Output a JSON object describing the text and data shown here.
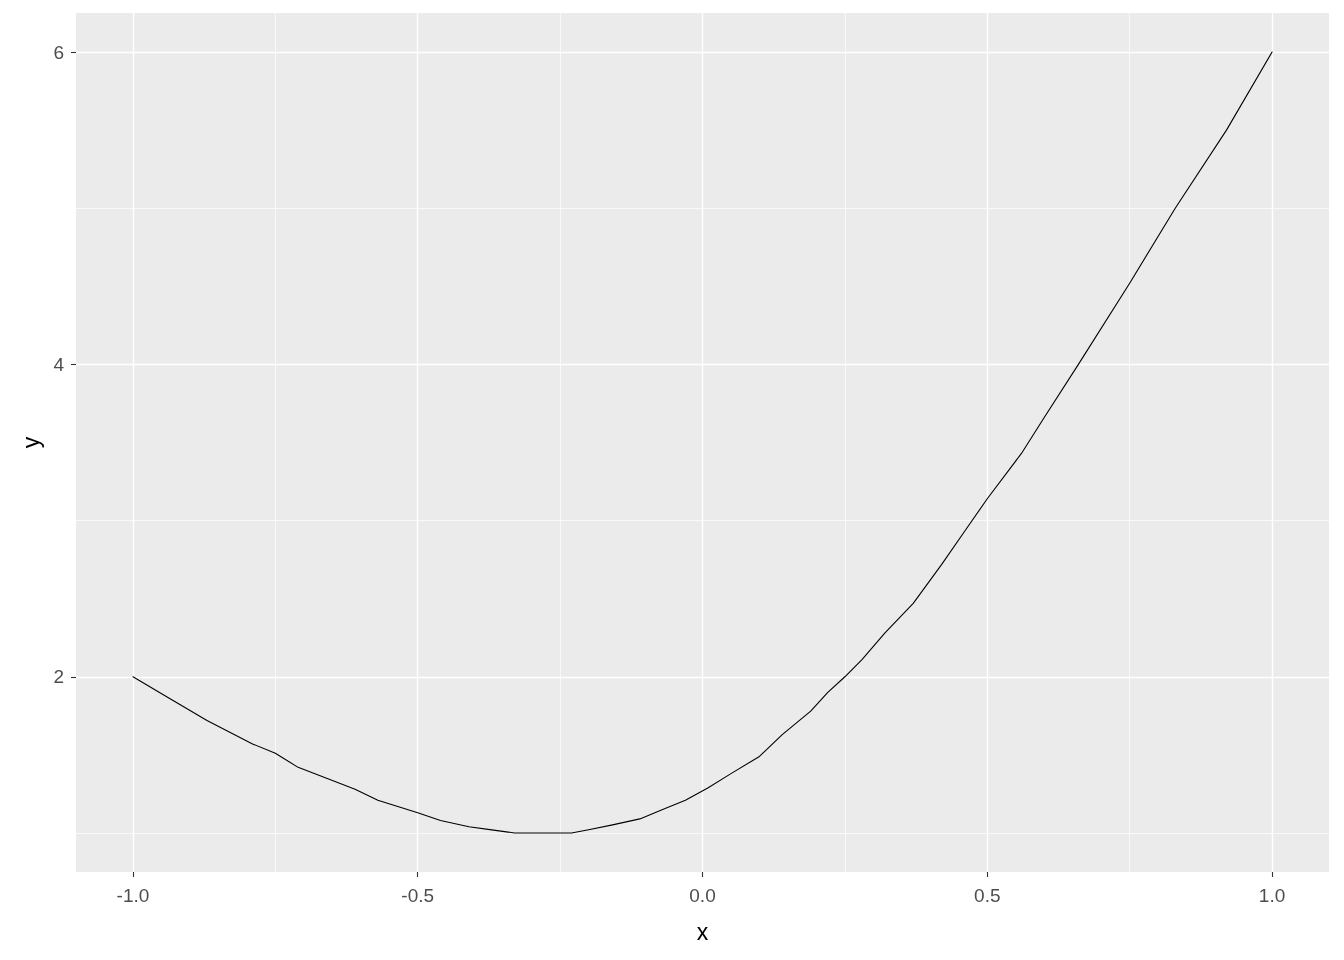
{
  "chart_data": {
    "type": "line",
    "xlabel": "x",
    "ylabel": "y",
    "color": "#000000",
    "x": [
      -1.0,
      -0.94,
      -0.87,
      -0.79,
      -0.75,
      -0.71,
      -0.66,
      -0.61,
      -0.57,
      -0.5,
      -0.46,
      -0.41,
      -0.37,
      -0.33,
      -0.29,
      -0.23,
      -0.2,
      -0.16,
      -0.11,
      -0.07,
      -0.03,
      0.01,
      0.05,
      0.1,
      0.14,
      0.19,
      0.22,
      0.25,
      0.28,
      0.32,
      0.37,
      0.42,
      0.46,
      0.5,
      0.56,
      0.6,
      0.66,
      0.75,
      0.83,
      0.92,
      1.0
    ],
    "values": [
      2.0,
      1.87,
      1.72,
      1.57,
      1.51,
      1.42,
      1.35,
      1.28,
      1.21,
      1.13,
      1.08,
      1.04,
      1.02,
      1.0,
      1.0,
      1.0,
      1.02,
      1.05,
      1.09,
      1.15,
      1.21,
      1.29,
      1.38,
      1.49,
      1.63,
      1.78,
      1.9,
      2.0,
      2.11,
      2.28,
      2.47,
      2.72,
      2.93,
      3.14,
      3.43,
      3.66,
      4.0,
      4.52,
      5.0,
      5.5,
      6.0
    ],
    "xlim": [
      -1.1,
      1.1
    ],
    "ylim": [
      0.75,
      6.25
    ],
    "xticks": [
      {
        "value": -1,
        "label": "-1.0"
      },
      {
        "value": -0.5,
        "label": "-0.5"
      },
      {
        "value": 0,
        "label": "0.0"
      },
      {
        "value": 0.5,
        "label": "0.5"
      },
      {
        "value": 1,
        "label": "1.0"
      }
    ],
    "yticks": [
      2,
      4,
      6
    ],
    "grid": true
  }
}
